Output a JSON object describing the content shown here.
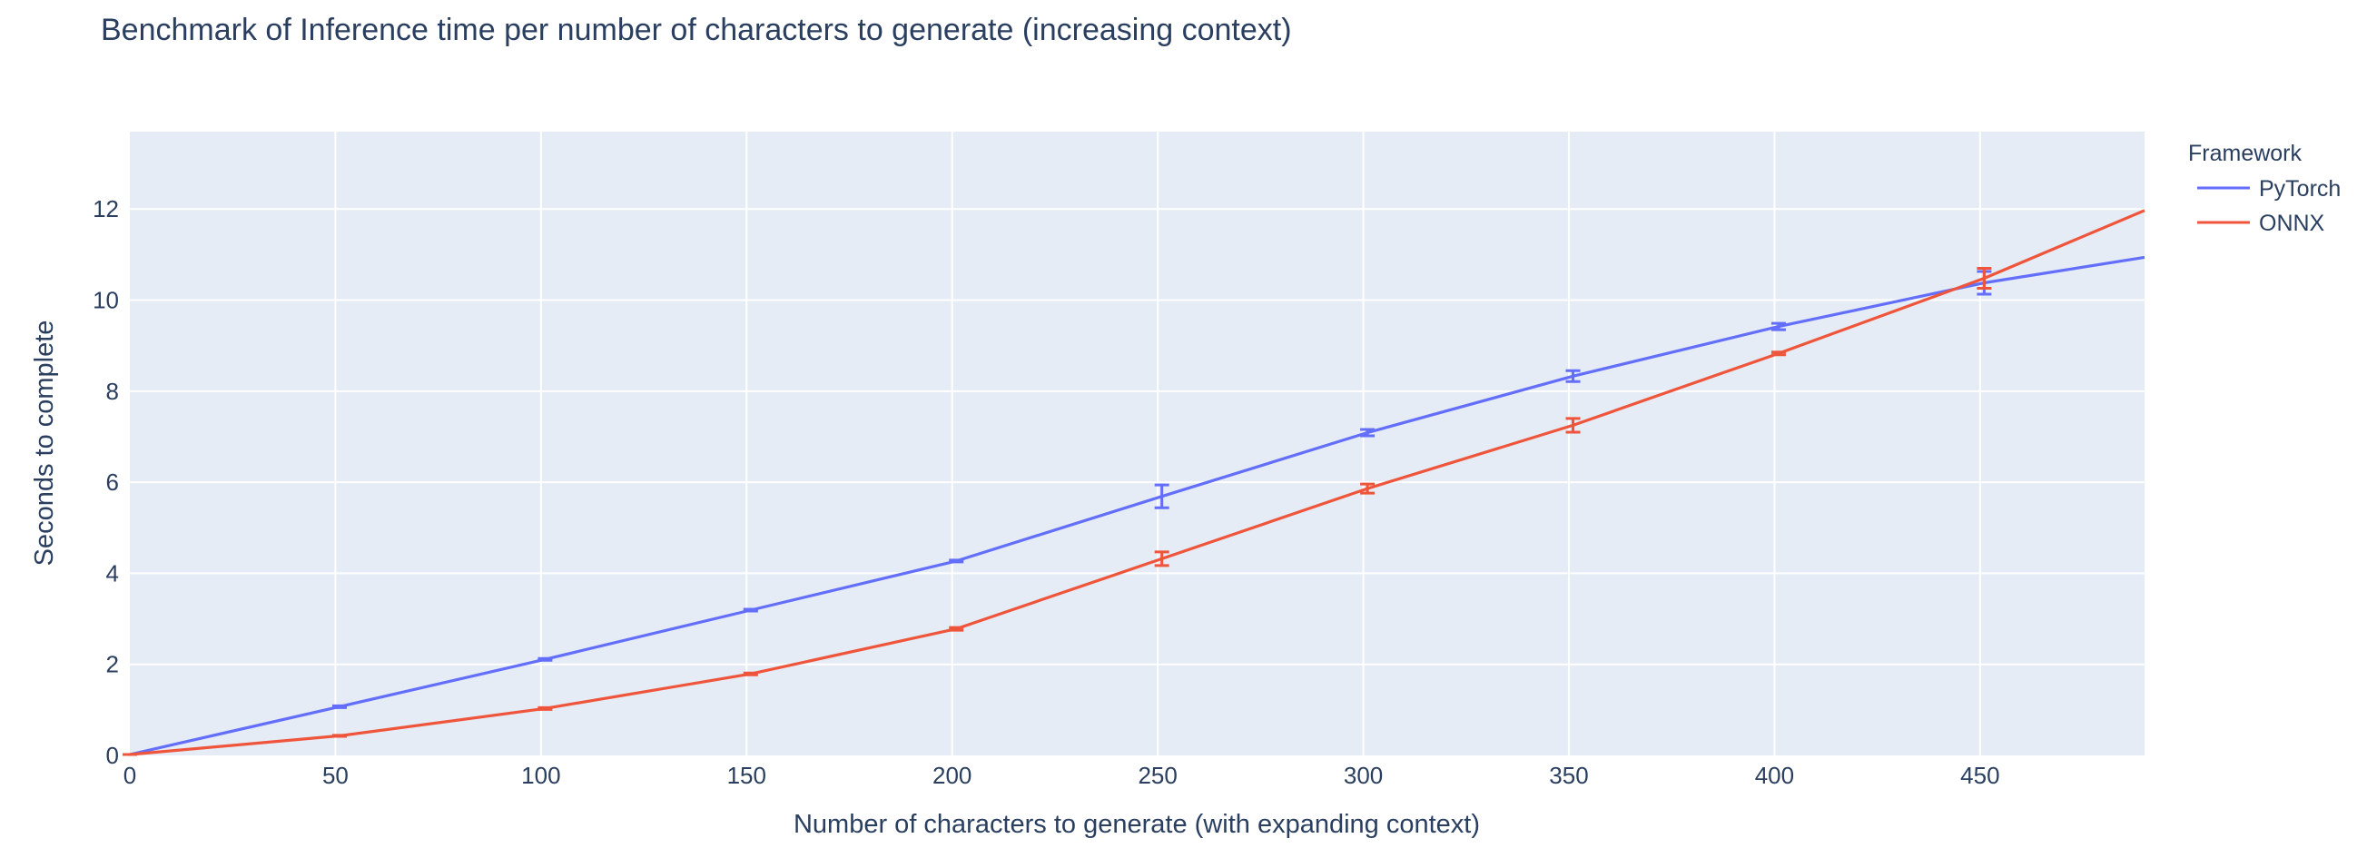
{
  "chart_data": {
    "type": "line",
    "title": "Benchmark of Inference time per number of characters to generate (increasing context)",
    "xlabel": "Number of characters to generate (with expanding context)",
    "ylabel": "Seconds to complete",
    "xlim": [
      0,
      490
    ],
    "ylim": [
      0,
      13.7
    ],
    "x_ticks": [
      "0",
      "50",
      "100",
      "150",
      "200",
      "250",
      "300",
      "350",
      "400",
      "450"
    ],
    "y_ticks": [
      "0",
      "2",
      "4",
      "6",
      "8",
      "10",
      "12"
    ],
    "grid": true,
    "legend_title": "Framework",
    "legend_position": "top-right",
    "series": [
      {
        "name": "PyTorch",
        "color": "#636efa",
        "points": [
          {
            "x": 0,
            "y": 0.02,
            "err": 0
          },
          {
            "x": 51,
            "y": 1.07,
            "err": 0.02
          },
          {
            "x": 101,
            "y": 2.11,
            "err": 0.02
          },
          {
            "x": 151,
            "y": 3.19,
            "err": 0.02
          },
          {
            "x": 201,
            "y": 4.27,
            "err": 0.02
          },
          {
            "x": 251,
            "y": 5.69,
            "err": 0.25
          },
          {
            "x": 301,
            "y": 7.09,
            "err": 0.07
          },
          {
            "x": 351,
            "y": 8.33,
            "err": 0.12
          },
          {
            "x": 401,
            "y": 9.42,
            "err": 0.07
          },
          {
            "x": 451,
            "y": 10.38,
            "err": 0.25
          },
          {
            "x": 490,
            "y": 10.94,
            "err": null
          }
        ]
      },
      {
        "name": "ONNX",
        "color": "#ef553b",
        "points": [
          {
            "x": 0,
            "y": 0.02,
            "err": 0
          },
          {
            "x": 51,
            "y": 0.43,
            "err": 0.01
          },
          {
            "x": 101,
            "y": 1.03,
            "err": 0.02
          },
          {
            "x": 151,
            "y": 1.79,
            "err": 0.02
          },
          {
            "x": 201,
            "y": 2.78,
            "err": 0.03
          },
          {
            "x": 251,
            "y": 4.32,
            "err": 0.15
          },
          {
            "x": 301,
            "y": 5.86,
            "err": 0.1
          },
          {
            "x": 351,
            "y": 7.25,
            "err": 0.15
          },
          {
            "x": 401,
            "y": 8.83,
            "err": 0.03
          },
          {
            "x": 451,
            "y": 10.48,
            "err": 0.22
          },
          {
            "x": 490,
            "y": 11.97,
            "err": null
          }
        ]
      }
    ]
  }
}
